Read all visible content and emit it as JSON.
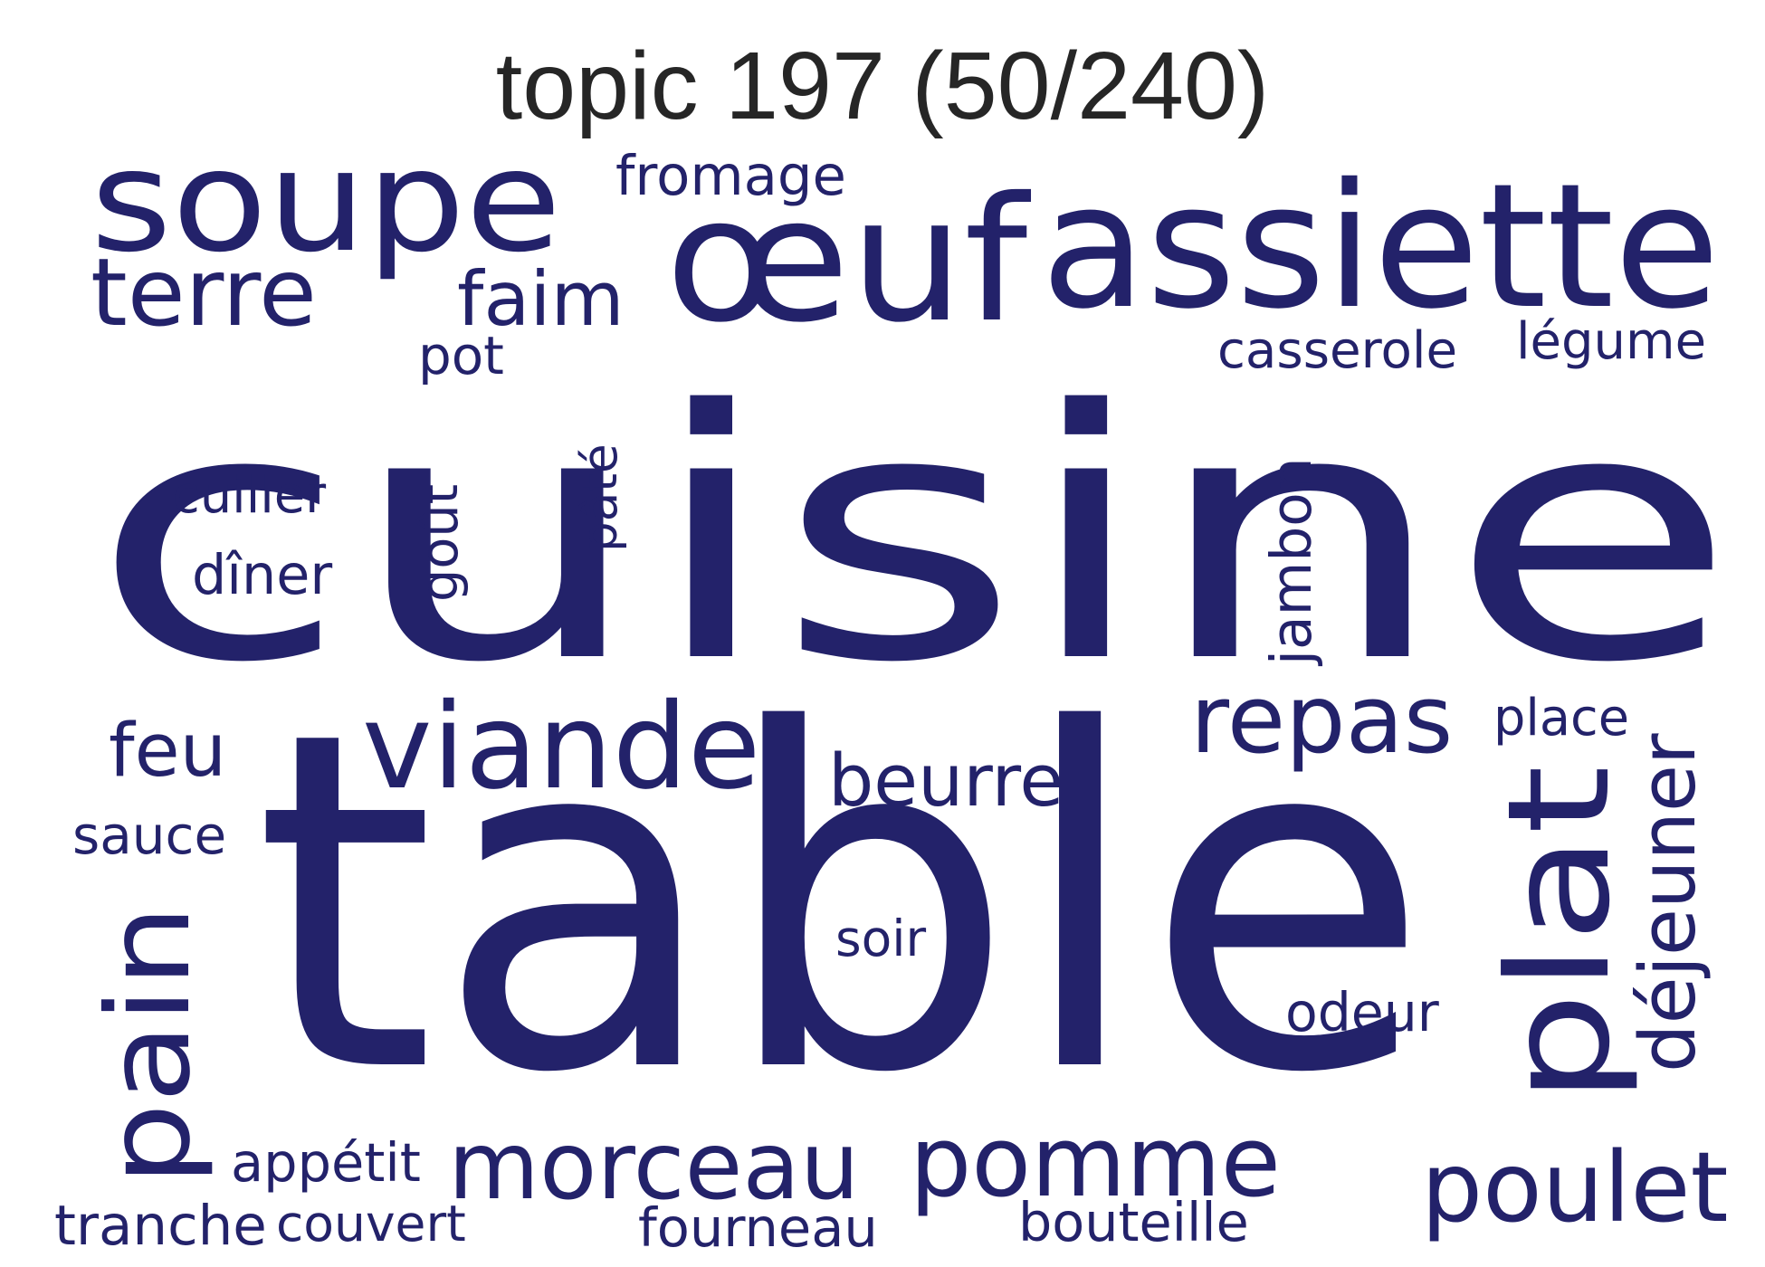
{
  "title": "topic 197 (50/240)",
  "word_color": "#23226a",
  "words": {
    "cuisine": "cuisine",
    "table": "table",
    "soupe": "soupe",
    "assiette": "assiette",
    "oeuf": "œuf",
    "plat": "plat",
    "viande": "viande",
    "pain": "pain",
    "repas": "repas",
    "terre": "terre",
    "faim": "faim",
    "pomme": "pomme",
    "morceau": "morceau",
    "poulet": "poulet",
    "beurre": "beurre",
    "dejeuner": "déjeuner",
    "feu": "feu",
    "fromage": "fromage",
    "casserole": "casserole",
    "legume": "légume",
    "pot": "pot",
    "cuiller": "cuiller",
    "diner": "dîner",
    "gout": "goût",
    "pate": "pâté",
    "jambon": "jambon",
    "place": "place",
    "sauce": "sauce",
    "soir": "soir",
    "odeur": "odeur",
    "appetit": "appétit",
    "tranche": "tranche",
    "couvert": "couvert",
    "fourneau": "fourneau",
    "bouteille": "bouteille"
  }
}
